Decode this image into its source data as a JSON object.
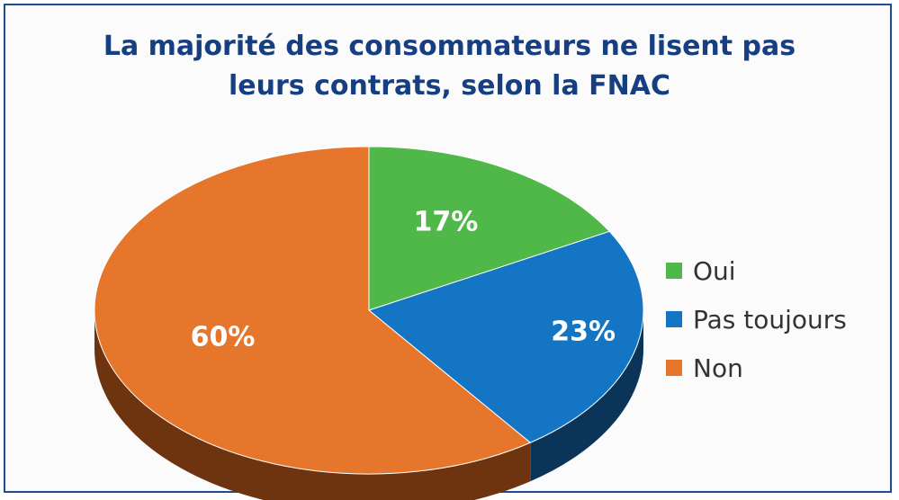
{
  "chart_data": {
    "type": "pie",
    "title": "La majorité des consommateurs ne lisent pas leurs contrats, selon la FNAC",
    "title_lines": [
      "La majorité des consommateurs ne lisent pas",
      "leurs contrats, selon la FNAC"
    ],
    "categories": [
      "Oui",
      "Pas toujours",
      "Non"
    ],
    "values": [
      17,
      23,
      60
    ],
    "value_labels": [
      "17%",
      "23%",
      "60%"
    ],
    "colors": [
      "#4fb848",
      "#1475c4",
      "#e6762b"
    ],
    "side_colors": [
      "#2e7a2a",
      "#0b3558",
      "#6e3410"
    ],
    "style": "3d",
    "legend_position": "right"
  }
}
